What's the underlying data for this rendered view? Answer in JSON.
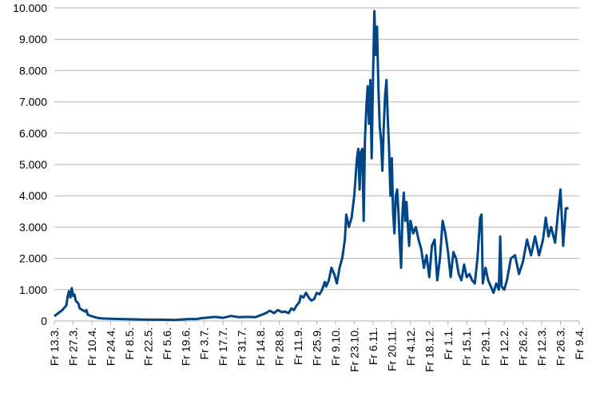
{
  "chart_data": {
    "type": "line",
    "color": "#004586",
    "grid": true,
    "x": [
      0,
      3,
      6,
      9,
      10,
      11,
      12,
      13,
      14,
      15,
      16,
      18,
      19,
      21,
      23,
      24,
      25,
      28,
      32,
      36,
      42,
      50,
      60,
      70,
      80,
      90,
      100,
      106,
      110,
      115,
      120,
      126,
      132,
      138,
      144,
      150,
      154,
      158,
      161,
      164,
      167,
      170,
      172,
      175,
      177,
      179,
      181,
      183,
      184,
      186,
      188,
      190,
      192,
      194,
      196,
      198,
      200,
      202,
      203,
      205,
      207,
      209,
      211,
      213,
      215,
      217,
      218,
      220,
      222,
      224,
      226,
      227,
      228,
      229,
      230,
      231,
      232,
      233,
      234,
      235,
      236,
      237,
      238,
      239,
      240,
      241,
      242,
      243,
      244,
      245,
      246,
      247,
      248,
      249,
      250,
      251,
      252,
      253,
      254,
      255,
      256,
      257,
      258,
      259,
      260,
      261,
      262,
      263,
      265,
      266,
      268,
      270,
      272,
      274,
      276,
      278,
      280,
      282,
      284,
      286,
      288,
      290,
      292,
      294,
      296,
      298,
      300,
      302,
      304,
      306,
      308,
      310,
      312,
      314,
      316,
      318,
      319,
      320,
      322,
      324,
      326,
      328,
      330,
      332,
      333,
      334,
      336,
      338,
      341,
      344,
      347,
      350,
      353,
      356,
      359,
      362,
      365,
      367,
      369,
      371,
      374,
      376,
      378,
      380,
      382,
      384
    ],
    "values": [
      150,
      250,
      350,
      500,
      800,
      950,
      750,
      1050,
      800,
      850,
      650,
      550,
      400,
      350,
      300,
      350,
      200,
      150,
      100,
      80,
      70,
      60,
      50,
      40,
      40,
      30,
      60,
      60,
      90,
      110,
      130,
      100,
      160,
      120,
      130,
      120,
      180,
      250,
      330,
      250,
      350,
      280,
      300,
      250,
      400,
      350,
      500,
      600,
      800,
      750,
      900,
      750,
      650,
      700,
      900,
      850,
      1000,
      1250,
      1100,
      1300,
      1700,
      1500,
      1200,
      1700,
      2000,
      2600,
      3400,
      3000,
      3300,
      4000,
      5200,
      5500,
      4200,
      5400,
      5500,
      3200,
      5800,
      6800,
      7500,
      6300,
      7700,
      5200,
      7800,
      9900,
      8500,
      9400,
      7500,
      6200,
      5800,
      4800,
      6200,
      7200,
      7700,
      6500,
      5500,
      4000,
      5200,
      3500,
      2800,
      4000,
      4200,
      3500,
      2500,
      1700,
      3500,
      4100,
      3200,
      3800,
      2400,
      3200,
      2800,
      3000,
      2600,
      2300,
      1700,
      2100,
      1400,
      2400,
      2600,
      1300,
      2000,
      3200,
      2800,
      2200,
      1400,
      2200,
      2000,
      1500,
      1300,
      1800,
      1400,
      1500,
      1300,
      1200,
      2000,
      3300,
      3400,
      1200,
      1700,
      1300,
      1100,
      900,
      1200,
      1000,
      2700,
      1100,
      1000,
      1300,
      2000,
      2100,
      1500,
      1900,
      2600,
      2100,
      2700,
      2100,
      2600,
      3300,
      2700,
      3000,
      2500,
      3400,
      4200,
      2400,
      3600,
      3600
    ],
    "xlim": [
      0,
      392
    ],
    "xticks": [
      {
        "value": 0,
        "label": "Fr 13.3."
      },
      {
        "value": 14,
        "label": "Fr 27.3."
      },
      {
        "value": 28,
        "label": "Fr 10.4."
      },
      {
        "value": 42,
        "label": "Fr 24.4."
      },
      {
        "value": 56,
        "label": "Fr 8.5."
      },
      {
        "value": 70,
        "label": "Fr 22.5."
      },
      {
        "value": 84,
        "label": "Fr 5.6."
      },
      {
        "value": 98,
        "label": "Fr 19.6."
      },
      {
        "value": 112,
        "label": "Fr 3.7."
      },
      {
        "value": 126,
        "label": "Fr 17.7."
      },
      {
        "value": 140,
        "label": "Fr 31.7."
      },
      {
        "value": 154,
        "label": "Fr 14.8."
      },
      {
        "value": 168,
        "label": "Fr 28.8."
      },
      {
        "value": 182,
        "label": "Fr 11.9."
      },
      {
        "value": 196,
        "label": "Fr 25.9."
      },
      {
        "value": 210,
        "label": "Fr 9.10."
      },
      {
        "value": 224,
        "label": "Fr 23.10."
      },
      {
        "value": 238,
        "label": "Fr 6.11."
      },
      {
        "value": 252,
        "label": "Fr 20.11."
      },
      {
        "value": 266,
        "label": "Fr 4.12."
      },
      {
        "value": 280,
        "label": "Fr 18.12."
      },
      {
        "value": 294,
        "label": "Fr 1.1."
      },
      {
        "value": 308,
        "label": "Fr 15.1."
      },
      {
        "value": 322,
        "label": "Fr 29.1."
      },
      {
        "value": 336,
        "label": "Fr 12.2."
      },
      {
        "value": 350,
        "label": "Fr 26.2."
      },
      {
        "value": 364,
        "label": "Fr 12.3."
      },
      {
        "value": 378,
        "label": "Fr 26.3."
      },
      {
        "value": 392,
        "label": "Fr 9.4."
      }
    ],
    "ylim": [
      0,
      10000
    ],
    "yticks": [
      0,
      {
        "value": 1000,
        "label": "1.000"
      },
      {
        "value": 2000,
        "label": "2.000"
      },
      {
        "value": 3000,
        "label": "3.000"
      },
      {
        "value": 4000,
        "label": "4.000"
      },
      {
        "value": 5000,
        "label": "5.000"
      },
      {
        "value": 6000,
        "label": "6.000"
      },
      {
        "value": 7000,
        "label": "7.000"
      },
      {
        "value": 8000,
        "label": "8.000"
      },
      {
        "value": 9000,
        "label": "9.000"
      },
      {
        "value": 10000,
        "label": "10.000"
      }
    ]
  }
}
